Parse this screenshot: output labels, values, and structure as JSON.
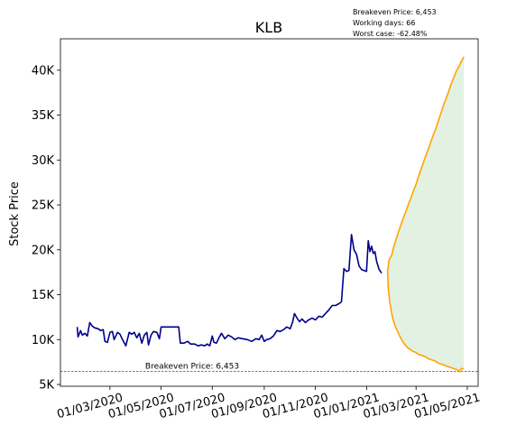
{
  "chart_data": {
    "type": "line",
    "title": "KLB",
    "ylabel": "Stock Price",
    "xlabel": "",
    "ylim": [
      4800,
      43500
    ],
    "xlim": [
      "2020-01-02",
      "2021-05-14"
    ],
    "y_ticks": [
      {
        "value": 5000,
        "label": "5K"
      },
      {
        "value": 10000,
        "label": "10K"
      },
      {
        "value": 15000,
        "label": "15K"
      },
      {
        "value": 20000,
        "label": "20K"
      },
      {
        "value": 25000,
        "label": "25K"
      },
      {
        "value": 30000,
        "label": "30K"
      },
      {
        "value": 35000,
        "label": "35K"
      },
      {
        "value": 40000,
        "label": "40K"
      }
    ],
    "x_ticks": [
      {
        "value": "2020-03-01",
        "label": "01/03/2020"
      },
      {
        "value": "2020-05-01",
        "label": "01/05/2020"
      },
      {
        "value": "2020-07-01",
        "label": "01/07/2020"
      },
      {
        "value": "2020-09-01",
        "label": "01/09/2020"
      },
      {
        "value": "2020-11-01",
        "label": "01/11/2020"
      },
      {
        "value": "2021-01-01",
        "label": "01/01/2021"
      },
      {
        "value": "2021-03-01",
        "label": "01/03/2021"
      },
      {
        "value": "2021-05-01",
        "label": "01/05/2021"
      }
    ],
    "info_lines": [
      "Breakeven Price: 6,453",
      "Working days: 66",
      "Worst case: -62.48%"
    ],
    "breakeven": {
      "value": 6453,
      "label": "Breakeven Price: 6,453",
      "color": "#e03030",
      "label_x": "2020-04-12"
    },
    "colors": {
      "history": "#00008b",
      "forecast": "#ffa500",
      "fill": "#d8ecd8"
    },
    "series": [
      {
        "key": "history",
        "points": [
          [
            "2020-01-22",
            11400
          ],
          [
            "2020-01-23",
            10300
          ],
          [
            "2020-01-26",
            11000
          ],
          [
            "2020-01-28",
            10500
          ],
          [
            "2020-01-31",
            10700
          ],
          [
            "2020-02-03",
            10400
          ],
          [
            "2020-02-06",
            11900
          ],
          [
            "2020-02-09",
            11500
          ],
          [
            "2020-02-12",
            11300
          ],
          [
            "2020-02-16",
            11200
          ],
          [
            "2020-02-19",
            11000
          ],
          [
            "2020-02-22",
            11100
          ],
          [
            "2020-02-24",
            9800
          ],
          [
            "2020-02-27",
            9700
          ],
          [
            "2020-03-01",
            10800
          ],
          [
            "2020-03-04",
            10900
          ],
          [
            "2020-03-06",
            10000
          ],
          [
            "2020-03-10",
            10800
          ],
          [
            "2020-03-13",
            10600
          ],
          [
            "2020-03-16",
            10000
          ],
          [
            "2020-03-20",
            9300
          ],
          [
            "2020-03-24",
            10800
          ],
          [
            "2020-03-27",
            10600
          ],
          [
            "2020-03-30",
            10800
          ],
          [
            "2020-04-02",
            10200
          ],
          [
            "2020-04-05",
            10700
          ],
          [
            "2020-04-08",
            9600
          ],
          [
            "2020-04-11",
            10500
          ],
          [
            "2020-04-14",
            10800
          ],
          [
            "2020-04-16",
            9400
          ],
          [
            "2020-04-19",
            10500
          ],
          [
            "2020-04-22",
            10900
          ],
          [
            "2020-04-26",
            10800
          ],
          [
            "2020-04-29",
            10100
          ],
          [
            "2020-05-01",
            11400
          ],
          [
            "2020-05-08",
            11400
          ],
          [
            "2020-05-15",
            11400
          ],
          [
            "2020-05-22",
            11400
          ],
          [
            "2020-05-24",
            9600
          ],
          [
            "2020-05-28",
            9600
          ],
          [
            "2020-06-02",
            9800
          ],
          [
            "2020-06-05",
            9500
          ],
          [
            "2020-06-10",
            9500
          ],
          [
            "2020-06-14",
            9300
          ],
          [
            "2020-06-18",
            9400
          ],
          [
            "2020-06-22",
            9300
          ],
          [
            "2020-06-25",
            9500
          ],
          [
            "2020-06-28",
            9300
          ],
          [
            "2020-07-01",
            10400
          ],
          [
            "2020-07-03",
            9700
          ],
          [
            "2020-07-06",
            9600
          ],
          [
            "2020-07-09",
            10200
          ],
          [
            "2020-07-12",
            10700
          ],
          [
            "2020-07-16",
            10100
          ],
          [
            "2020-07-20",
            10500
          ],
          [
            "2020-07-24",
            10300
          ],
          [
            "2020-07-28",
            10000
          ],
          [
            "2020-08-01",
            10200
          ],
          [
            "2020-08-06",
            10100
          ],
          [
            "2020-08-12",
            10000
          ],
          [
            "2020-08-17",
            9800
          ],
          [
            "2020-08-22",
            10100
          ],
          [
            "2020-08-26",
            10000
          ],
          [
            "2020-08-29",
            10500
          ],
          [
            "2020-09-01",
            9800
          ],
          [
            "2020-09-04",
            10000
          ],
          [
            "2020-09-08",
            10100
          ],
          [
            "2020-09-12",
            10400
          ],
          [
            "2020-09-16",
            11000
          ],
          [
            "2020-09-20",
            10900
          ],
          [
            "2020-09-24",
            11100
          ],
          [
            "2020-09-28",
            11400
          ],
          [
            "2020-10-02",
            11200
          ],
          [
            "2020-10-05",
            12000
          ],
          [
            "2020-10-07",
            12900
          ],
          [
            "2020-10-10",
            12400
          ],
          [
            "2020-10-13",
            12000
          ],
          [
            "2020-10-16",
            12300
          ],
          [
            "2020-10-20",
            11900
          ],
          [
            "2020-10-24",
            12200
          ],
          [
            "2020-10-28",
            12400
          ],
          [
            "2020-11-01",
            12200
          ],
          [
            "2020-11-05",
            12600
          ],
          [
            "2020-11-09",
            12500
          ],
          [
            "2020-11-13",
            12900
          ],
          [
            "2020-11-17",
            13300
          ],
          [
            "2020-11-21",
            13800
          ],
          [
            "2020-11-25",
            13800
          ],
          [
            "2020-11-29",
            14000
          ],
          [
            "2020-12-02",
            14200
          ],
          [
            "2020-12-05",
            17900
          ],
          [
            "2020-12-08",
            17600
          ],
          [
            "2020-12-11",
            17700
          ],
          [
            "2020-12-14",
            21700
          ],
          [
            "2020-12-17",
            20000
          ],
          [
            "2020-12-20",
            19500
          ],
          [
            "2020-12-23",
            18200
          ],
          [
            "2020-12-26",
            17800
          ],
          [
            "2020-12-29",
            17700
          ],
          [
            "2021-01-01",
            17600
          ],
          [
            "2021-01-03",
            21000
          ],
          [
            "2021-01-05",
            19800
          ],
          [
            "2021-01-07",
            20400
          ],
          [
            "2021-01-09",
            19600
          ],
          [
            "2021-01-11",
            19800
          ],
          [
            "2021-01-13",
            18700
          ],
          [
            "2021-01-16",
            17800
          ],
          [
            "2021-01-19",
            17400
          ]
        ]
      },
      {
        "key": "forecast_upper",
        "points": [
          [
            "2021-01-26",
            17600
          ],
          [
            "2021-01-28",
            18900
          ],
          [
            "2021-01-31",
            19400
          ],
          [
            "2021-02-02",
            20200
          ],
          [
            "2021-02-05",
            21100
          ],
          [
            "2021-02-08",
            22000
          ],
          [
            "2021-02-11",
            22800
          ],
          [
            "2021-02-14",
            23600
          ],
          [
            "2021-02-17",
            24300
          ],
          [
            "2021-02-20",
            25100
          ],
          [
            "2021-02-23",
            25800
          ],
          [
            "2021-02-26",
            26600
          ],
          [
            "2021-03-01",
            27300
          ],
          [
            "2021-03-04",
            28200
          ],
          [
            "2021-03-07",
            29000
          ],
          [
            "2021-03-10",
            29800
          ],
          [
            "2021-03-13",
            30600
          ],
          [
            "2021-03-16",
            31300
          ],
          [
            "2021-03-19",
            32100
          ],
          [
            "2021-03-22",
            32900
          ],
          [
            "2021-03-25",
            33600
          ],
          [
            "2021-03-28",
            34500
          ],
          [
            "2021-03-31",
            35300
          ],
          [
            "2021-04-03",
            36200
          ],
          [
            "2021-04-06",
            36900
          ],
          [
            "2021-04-09",
            37700
          ],
          [
            "2021-04-12",
            38500
          ],
          [
            "2021-04-15",
            39200
          ],
          [
            "2021-04-18",
            39900
          ],
          [
            "2021-04-21",
            40400
          ],
          [
            "2021-04-24",
            41000
          ],
          [
            "2021-04-27",
            41500
          ]
        ]
      },
      {
        "key": "forecast_lower",
        "points": [
          [
            "2021-01-26",
            17600
          ],
          [
            "2021-01-27",
            15600
          ],
          [
            "2021-01-29",
            13900
          ],
          [
            "2021-02-01",
            12400
          ],
          [
            "2021-02-04",
            11500
          ],
          [
            "2021-02-07",
            10900
          ],
          [
            "2021-02-10",
            10300
          ],
          [
            "2021-02-13",
            9800
          ],
          [
            "2021-02-16",
            9400
          ],
          [
            "2021-02-19",
            9100
          ],
          [
            "2021-02-22",
            8900
          ],
          [
            "2021-02-25",
            8700
          ],
          [
            "2021-02-28",
            8600
          ],
          [
            "2021-03-03",
            8400
          ],
          [
            "2021-03-06",
            8300
          ],
          [
            "2021-03-09",
            8200
          ],
          [
            "2021-03-12",
            8100
          ],
          [
            "2021-03-15",
            7900
          ],
          [
            "2021-03-18",
            7800
          ],
          [
            "2021-03-21",
            7700
          ],
          [
            "2021-03-24",
            7600
          ],
          [
            "2021-03-27",
            7400
          ],
          [
            "2021-03-30",
            7300
          ],
          [
            "2021-04-02",
            7200
          ],
          [
            "2021-04-05",
            7100
          ],
          [
            "2021-04-08",
            7000
          ],
          [
            "2021-04-11",
            6900
          ],
          [
            "2021-04-14",
            6800
          ],
          [
            "2021-04-17",
            6700
          ],
          [
            "2021-04-20",
            6600
          ],
          [
            "2021-04-22",
            6400
          ],
          [
            "2021-04-24",
            6800
          ],
          [
            "2021-04-27",
            6700
          ]
        ]
      }
    ]
  }
}
